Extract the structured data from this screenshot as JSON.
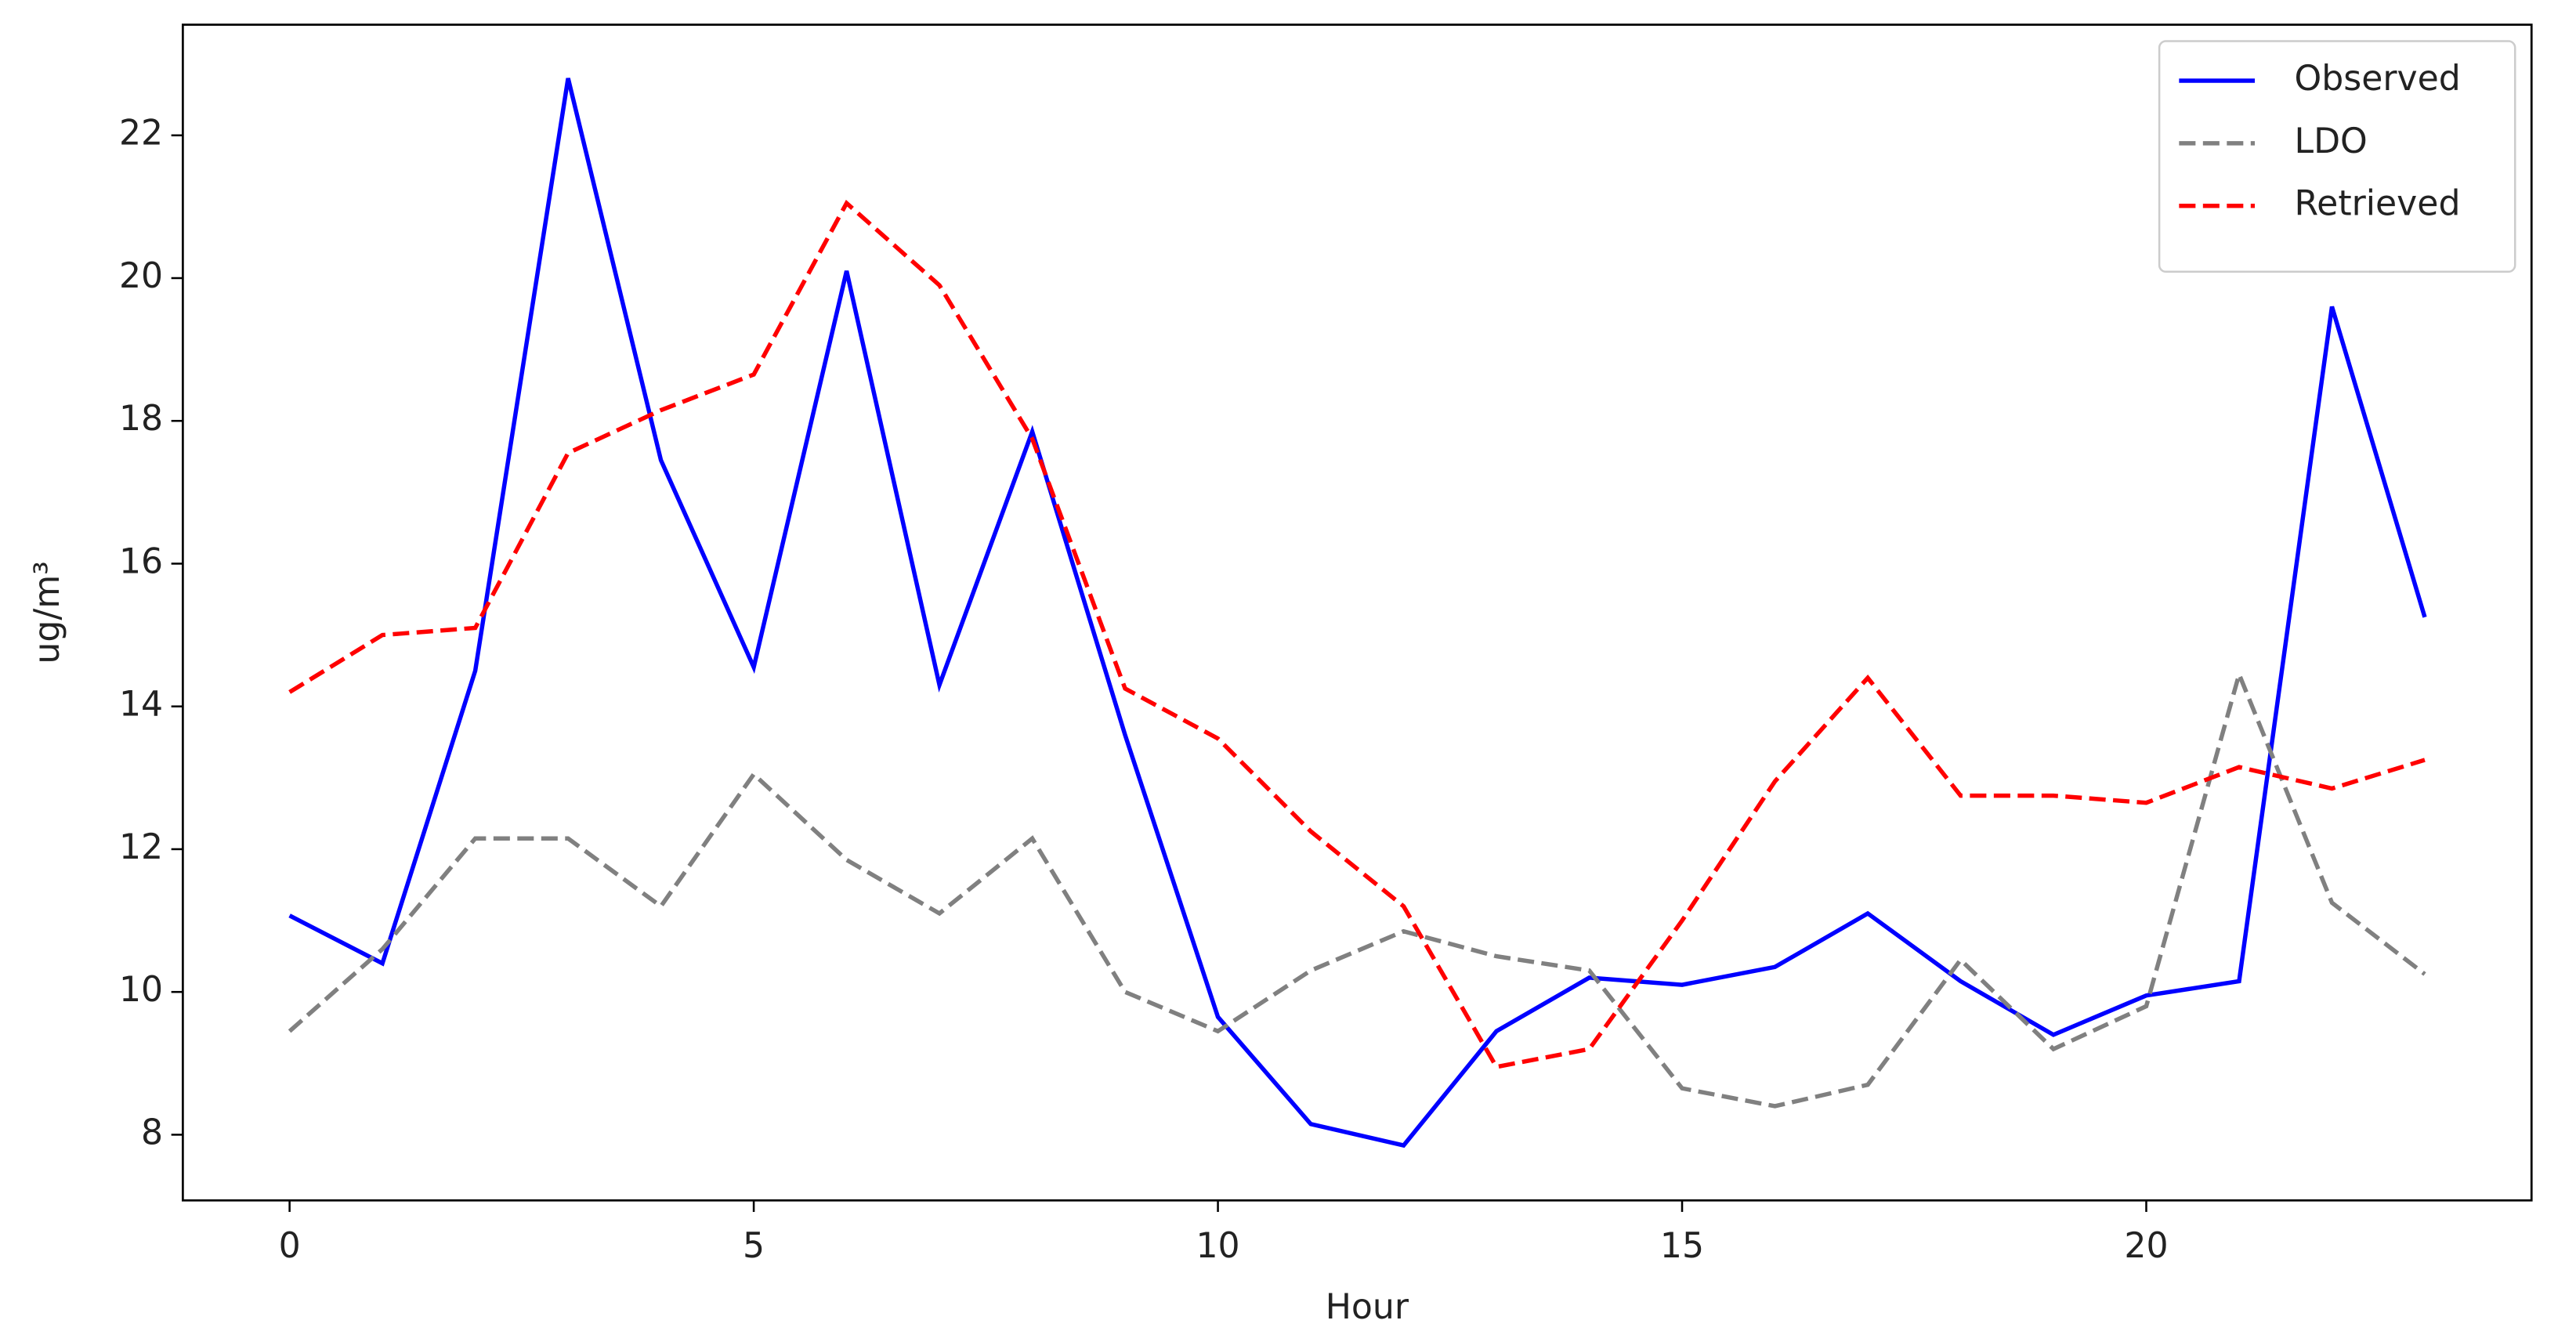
{
  "chart_data": {
    "type": "line",
    "x_label": "Hour",
    "y_label": "ug/m³",
    "x": [
      0,
      1,
      2,
      3,
      4,
      5,
      6,
      7,
      8,
      9,
      10,
      11,
      12,
      13,
      14,
      15,
      16,
      17,
      18,
      19,
      20,
      21,
      22,
      23
    ],
    "series": [
      {
        "name": "Observed",
        "color": "#0000ff",
        "linestyle": "solid",
        "values": [
          11.07,
          10.4,
          14.5,
          22.8,
          17.45,
          14.55,
          20.1,
          14.3,
          17.85,
          13.6,
          9.65,
          8.15,
          7.85,
          9.45,
          10.2,
          10.1,
          10.35,
          11.1,
          10.15,
          9.4,
          9.95,
          10.15,
          19.6,
          15.25
        ]
      },
      {
        "name": "LDO",
        "color": "#808080",
        "linestyle": "dashed",
        "values": [
          9.45,
          10.6,
          12.15,
          12.15,
          11.2,
          13.05,
          11.85,
          11.1,
          12.15,
          10.0,
          9.45,
          10.3,
          10.85,
          10.5,
          10.3,
          8.65,
          8.4,
          8.7,
          10.45,
          9.2,
          9.8,
          14.45,
          11.25,
          10.25
        ]
      },
      {
        "name": "Retrieved",
        "color": "#ff0000",
        "linestyle": "dashed",
        "values": [
          14.2,
          15.0,
          15.1,
          17.55,
          18.15,
          18.65,
          21.05,
          19.9,
          17.75,
          14.25,
          13.55,
          12.25,
          11.2,
          8.95,
          9.2,
          11.0,
          12.95,
          14.4,
          12.75,
          12.75,
          12.65,
          13.15,
          12.85,
          13.25
        ]
      }
    ],
    "xlim": [
      -1.15,
      24.15
    ],
    "xticks": [
      0,
      5,
      10,
      15,
      20
    ],
    "ylim": [
      7.08,
      23.55
    ],
    "yticks": [
      8,
      10,
      12,
      14,
      16,
      18,
      20,
      22
    ],
    "grid": false,
    "legend": "upper right"
  }
}
